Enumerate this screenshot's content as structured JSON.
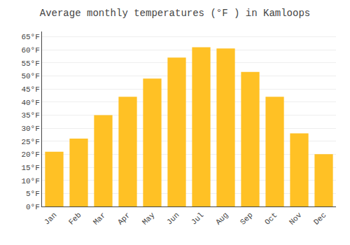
{
  "chart_data": {
    "type": "bar",
    "title": "Average monthly temperatures (°F ) in Kamloops",
    "categories": [
      "Jan",
      "Feb",
      "Mar",
      "Apr",
      "May",
      "Jun",
      "Jul",
      "Aug",
      "Sep",
      "Oct",
      "Nov",
      "Dec"
    ],
    "values": [
      21,
      26,
      35,
      42,
      49,
      57,
      61,
      60.5,
      51.5,
      42,
      28,
      20
    ],
    "color": "#FFC125",
    "ylim": [
      0,
      67
    ],
    "yticks": [
      {
        "value": 0,
        "label": "0°F"
      },
      {
        "value": 5,
        "label": "5°F"
      },
      {
        "value": 10,
        "label": "10°F"
      },
      {
        "value": 15,
        "label": "15°F"
      },
      {
        "value": 20,
        "label": "20°F"
      },
      {
        "value": 25,
        "label": "25°F"
      },
      {
        "value": 30,
        "label": "30°F"
      },
      {
        "value": 35,
        "label": "35°F"
      },
      {
        "value": 40,
        "label": "40°F"
      },
      {
        "value": 45,
        "label": "45°F"
      },
      {
        "value": 50,
        "label": "50°F"
      },
      {
        "value": 55,
        "label": "55°F"
      },
      {
        "value": 60,
        "label": "60°F"
      },
      {
        "value": 65,
        "label": "65°F"
      }
    ],
    "grid": true
  }
}
